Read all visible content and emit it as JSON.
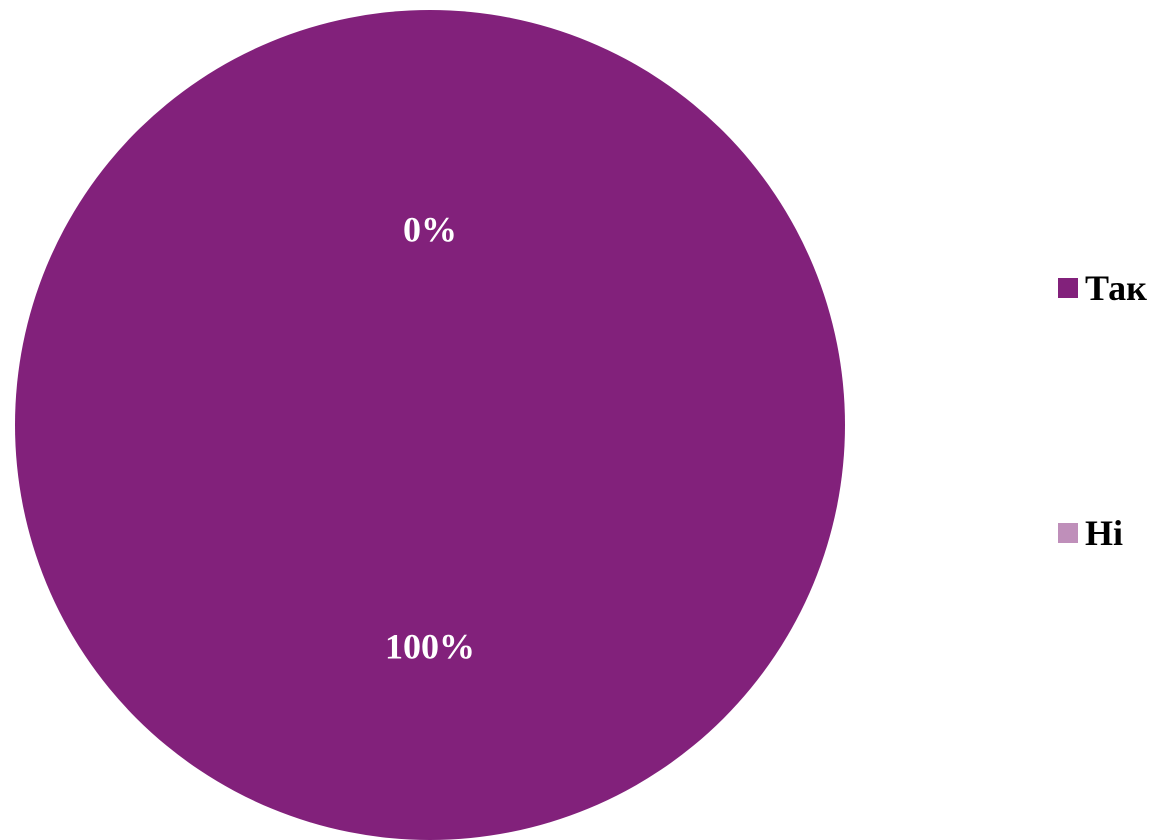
{
  "chart_data": {
    "type": "pie",
    "categories": [
      "Так",
      "Ні"
    ],
    "values": [
      100,
      0
    ],
    "data_labels": [
      "100%",
      "0%"
    ],
    "colors": [
      "#82217b",
      "#bf8fba"
    ],
    "label_color": "#ffffff",
    "legend_position": "right"
  }
}
